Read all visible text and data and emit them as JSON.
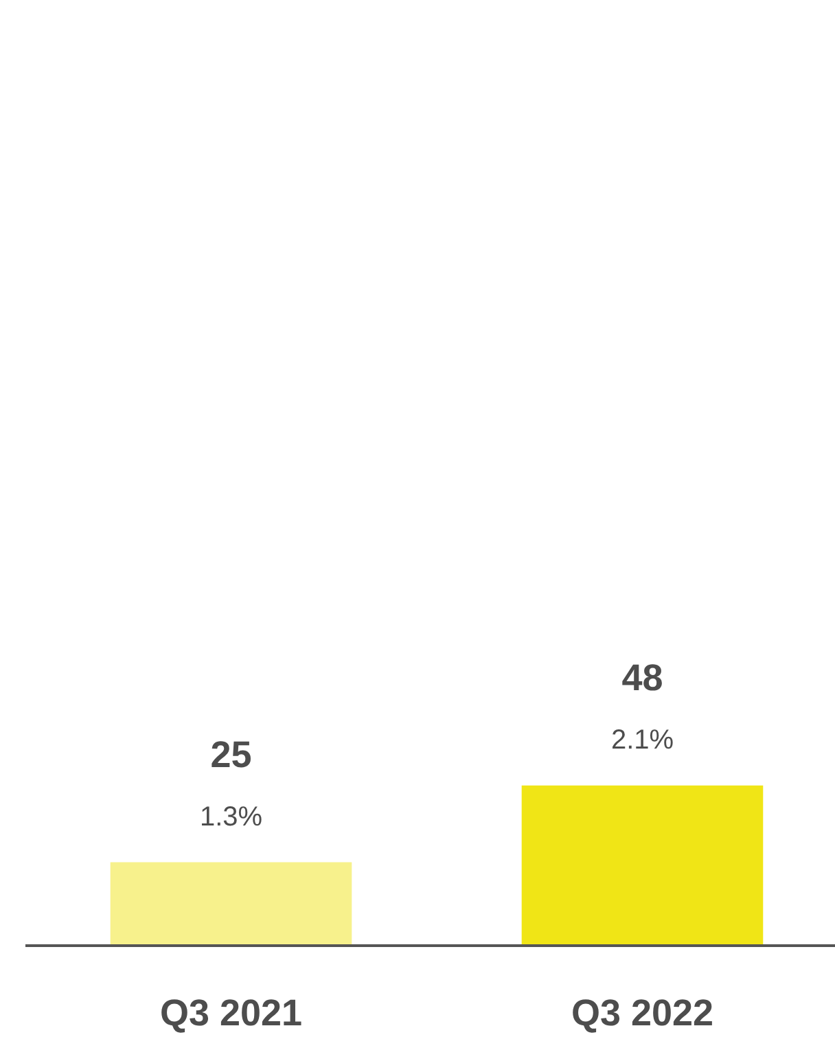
{
  "chart_data": {
    "type": "bar",
    "categories": [
      "Q3 2021",
      "Q3 2022"
    ],
    "values": [
      25,
      48
    ],
    "colors": [
      "#f7f18c",
      "#f0e516"
    ],
    "data_labels": true,
    "grid": false,
    "tick_labels": "x",
    "annotations": [
      {
        "text": "1.3%",
        "x": "Q3 2021",
        "y": 25
      },
      {
        "text": "2.1%",
        "x": "Q3 2022",
        "y": 48
      }
    ]
  }
}
